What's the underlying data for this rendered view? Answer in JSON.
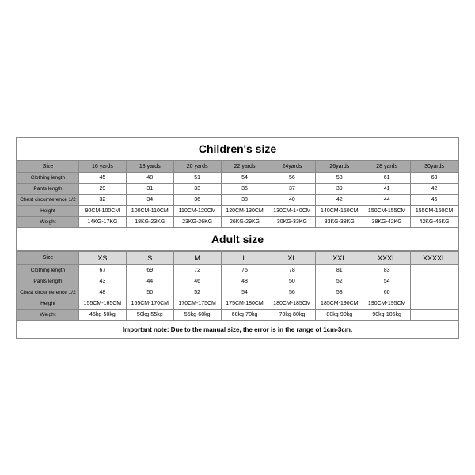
{
  "children": {
    "title": "Children's size",
    "row_labels": [
      "Size",
      "Clothing length",
      "Pants length",
      "Chest circumference 1/2",
      "Height",
      "Weight"
    ],
    "columns": [
      "16 yards",
      "18 yards",
      "20 yards",
      "22 yards",
      "24yards",
      "26yards",
      "28 yards",
      "30yards"
    ],
    "rows": [
      [
        "45",
        "48",
        "51",
        "54",
        "56",
        "58",
        "61",
        "63"
      ],
      [
        "29",
        "31",
        "33",
        "35",
        "37",
        "39",
        "41",
        "42"
      ],
      [
        "32",
        "34",
        "36",
        "38",
        "40",
        "42",
        "44",
        "46"
      ],
      [
        "90CM-100CM",
        "100CM-110CM",
        "110CM-120CM",
        "120CM-130CM",
        "130CM-140CM",
        "140CM-150CM",
        "150CM-155CM",
        "155CM-160CM"
      ],
      [
        "14KG-17KG",
        "18KG-23KG",
        "23KG-26KG",
        "26KG-29KG",
        "30KG-33KG",
        "33KG-38KG",
        "38KG-42KG",
        "42KG-45KG"
      ]
    ]
  },
  "adult": {
    "title": "Adult size",
    "row_labels": [
      "Size",
      "Clothing length",
      "Pants length",
      "Chest circumference 1/2",
      "Height",
      "Weight"
    ],
    "columns": [
      "XS",
      "S",
      "M",
      "L",
      "XL",
      "XXL",
      "XXXL",
      "XXXXL"
    ],
    "rows": [
      [
        "67",
        "69",
        "72",
        "75",
        "78",
        "81",
        "83",
        ""
      ],
      [
        "43",
        "44",
        "46",
        "48",
        "50",
        "52",
        "54",
        ""
      ],
      [
        "48",
        "50",
        "52",
        "54",
        "56",
        "58",
        "60",
        ""
      ],
      [
        "155CM-165CM",
        "165CM-170CM",
        "170CM-175CM",
        "175CM-180CM",
        "180CM-185CM",
        "185CM-190CM",
        "190CM-195CM",
        ""
      ],
      [
        "45kg-50kg",
        "50kg-55kg",
        "55kg-60kg",
        "60kg-70kg",
        "70kg-80kg",
        "80kg-90kg",
        "90kg-105kg",
        ""
      ]
    ]
  },
  "note": "Important note: Due to the manual size, the error is in the range of 1cm-3cm.",
  "colors": {
    "border": "#888888",
    "header_bg": "#a8a8a8",
    "adult_size_bg": "#d9d9d9",
    "background": "#ffffff"
  }
}
